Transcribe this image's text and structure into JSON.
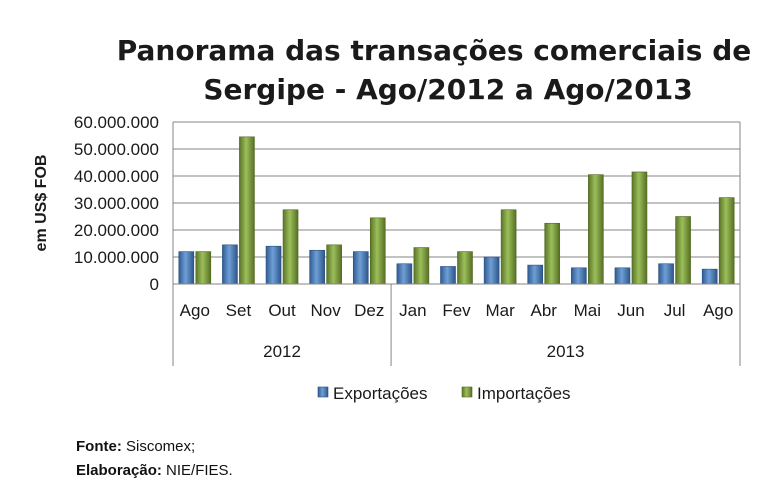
{
  "chart_data": {
    "type": "bar",
    "title": "Panorama das transações comerciais de Sergipe - Ago/2012 a Ago/2013",
    "title_lines": [
      "Panorama das transações comerciais de",
      "Sergipe - Ago/2012 a Ago/2013"
    ],
    "ylabel": "em US$ FOB",
    "xlabel": "",
    "ylim": [
      0,
      60000000
    ],
    "yticks": [
      0,
      10000000,
      20000000,
      30000000,
      40000000,
      50000000,
      60000000
    ],
    "ytick_labels": [
      "0",
      "10.000.000",
      "20.000.000",
      "30.000.000",
      "40.000.000",
      "50.000.000",
      "60.000.000"
    ],
    "categories": [
      "Ago",
      "Set",
      "Out",
      "Nov",
      "Dez",
      "Jan",
      "Fev",
      "Mar",
      "Abr",
      "Mai",
      "Jun",
      "Jul",
      "Ago"
    ],
    "groups": [
      {
        "label": "2012",
        "count": 5
      },
      {
        "label": "2013",
        "count": 8
      }
    ],
    "series": [
      {
        "name": "Exportações",
        "color": "#4a7ebb",
        "values": [
          12000000,
          14500000,
          14000000,
          12500000,
          12000000,
          7500000,
          6500000,
          10000000,
          7000000,
          6000000,
          6000000,
          7500000,
          5500000
        ]
      },
      {
        "name": "Importações",
        "color": "#77933c",
        "values": [
          12000000,
          54500000,
          27500000,
          14500000,
          24500000,
          13500000,
          12000000,
          27500000,
          22500000,
          40500000,
          41500000,
          25000000,
          32000000
        ]
      }
    ],
    "grid": true,
    "legend_position": "bottom"
  },
  "footer": {
    "fonte_label": "Fonte:",
    "fonte_value": "Siscomex;",
    "elaboracao_label": "Elaboração:",
    "elaboracao_value": "NIE/FIES."
  }
}
